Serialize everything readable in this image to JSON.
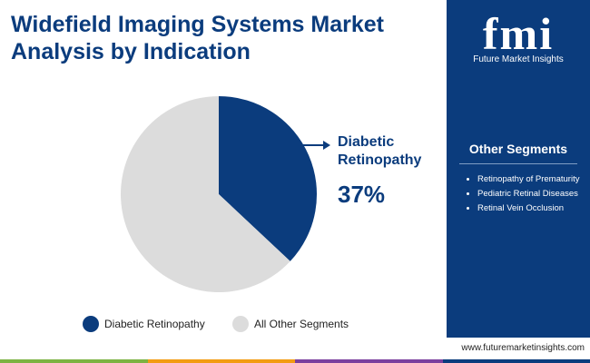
{
  "chart_data": {
    "type": "pie",
    "title": "Widefield Imaging Systems Market Analysis by Indication",
    "categories": [
      "Diabetic Retinopathy",
      "All Other Segments"
    ],
    "values": [
      37,
      63
    ],
    "value_labels": [
      "37%",
      null
    ],
    "colors": [
      "#0b3c7d",
      "#dcdcdc"
    ],
    "legend": "bottom"
  },
  "sidebar": {
    "logo": "fmi",
    "brand": "Future Market Insights",
    "heading": "Other Segments",
    "items": [
      "Retinopathy of Prematurity",
      "Pediatric Retinal Diseases",
      "Retinal Vein Occlusion"
    ]
  },
  "footer": {
    "website": "www.futuremarketinsights.com"
  }
}
